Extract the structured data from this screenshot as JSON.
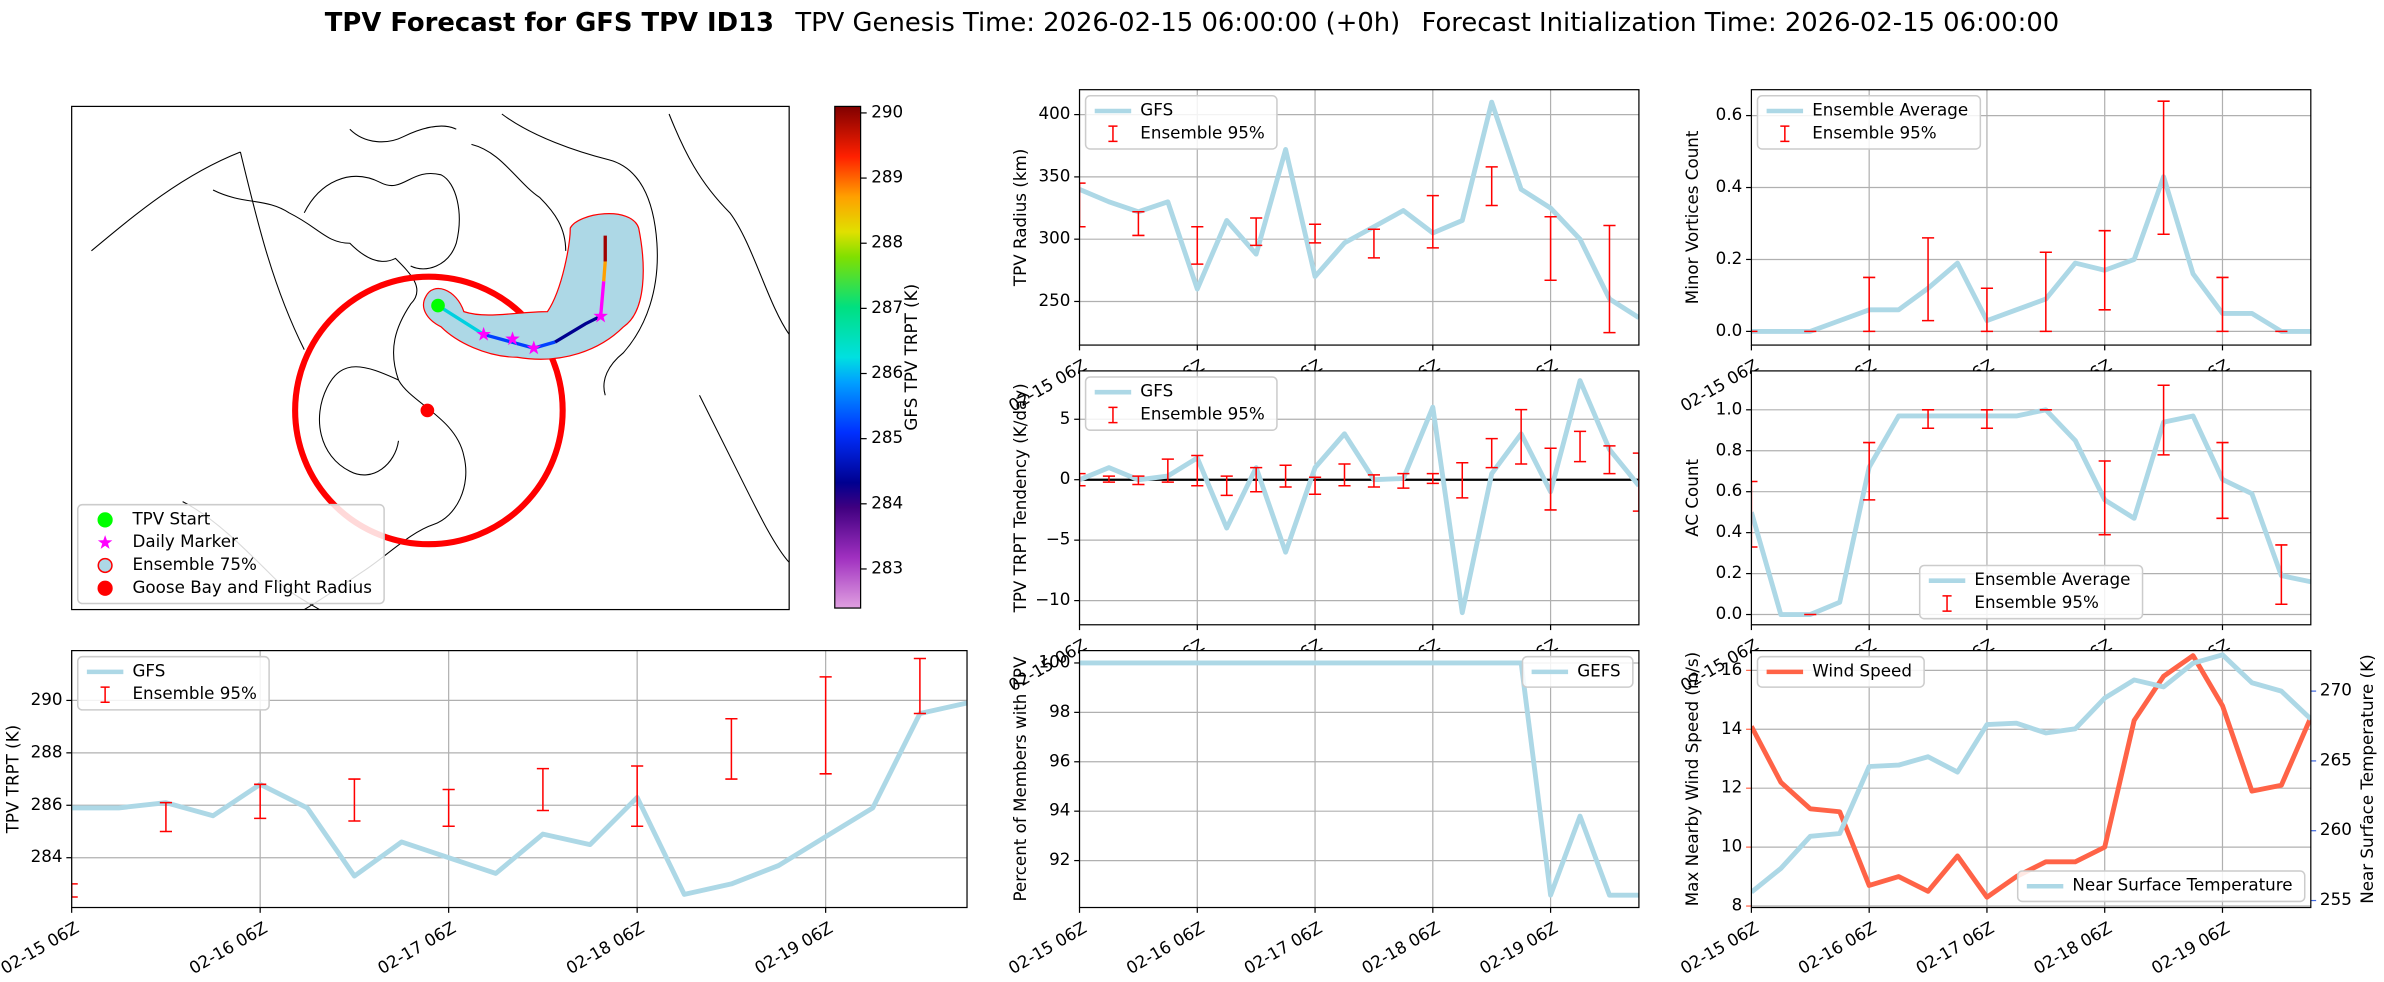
{
  "title": {
    "bold": "TPV Forecast for GFS TPV ID13",
    "genesis": "TPV Genesis Time: 2026-02-15 06:00:00 (+0h)",
    "init": "Forecast Initialization Time: 2026-02-15 06:00:00"
  },
  "chart_data": [
    {
      "type": "map",
      "legend": [
        {
          "name": "TPV Start",
          "marker": "circle",
          "color": "#00ff00",
          "edge": "#00ff00"
        },
        {
          "name": "Daily Marker",
          "marker": "star",
          "color": "#ff00ff",
          "edge": "#ff00ff"
        },
        {
          "name": "Ensemble 75%",
          "marker": "circle",
          "color": "#add8e6",
          "edge": "red"
        },
        {
          "name": "Goose Bay and Flight Radius",
          "marker": "circle",
          "color": "red",
          "edge": "red"
        }
      ],
      "legend_loc": "lower left",
      "colorbar": {
        "label": "GFS TPV TRPT (K)",
        "lim": [
          282.4,
          290.1
        ],
        "ticks": [
          283,
          284,
          285,
          286,
          287,
          288,
          289,
          290
        ]
      }
    },
    {
      "type": "line",
      "ylabel": "TPV Radius (km)",
      "x": [
        0,
        6,
        12,
        18,
        24,
        30,
        36,
        42,
        48,
        54,
        60,
        66,
        72,
        78,
        84,
        90,
        96,
        102,
        108,
        114
      ],
      "xlim": [
        0,
        114
      ],
      "xticks": [
        {
          "value": 0,
          "label": "02-15 06Z"
        },
        {
          "value": 24,
          "label": "02-16 06Z"
        },
        {
          "value": 48,
          "label": "02-17 06Z"
        },
        {
          "value": 72,
          "label": "02-18 06Z"
        },
        {
          "value": 96,
          "label": "02-19 06Z"
        }
      ],
      "ylim": [
        215,
        420
      ],
      "yticks": [
        250,
        300,
        350,
        400
      ],
      "grid": true,
      "legend_loc": "upper left",
      "series": [
        {
          "name": "GFS",
          "color": "#add8e6",
          "values": [
            340,
            330,
            322,
            330,
            260,
            315,
            288,
            372,
            270,
            297,
            310,
            323,
            305,
            315,
            410,
            340,
            325,
            300,
            252,
            237
          ]
        }
      ],
      "errorbars": {
        "name": "Ensemble 95%",
        "color": "red",
        "lower": [
          310,
          null,
          303,
          null,
          280,
          null,
          295,
          null,
          297,
          null,
          285,
          null,
          293,
          null,
          327,
          null,
          267,
          null,
          225,
          null
        ],
        "upper": [
          345,
          null,
          322,
          null,
          310,
          null,
          317,
          null,
          312,
          null,
          308,
          null,
          335,
          null,
          358,
          null,
          318,
          null,
          311,
          null
        ]
      }
    },
    {
      "type": "line",
      "ylabel": "Minor Vortices Count",
      "x": [
        0,
        6,
        12,
        18,
        24,
        30,
        36,
        42,
        48,
        54,
        60,
        66,
        72,
        78,
        84,
        90,
        96,
        102,
        108,
        114
      ],
      "xlim": [
        0,
        114
      ],
      "xticks": [
        {
          "value": 0,
          "label": "02-15 06Z"
        },
        {
          "value": 24,
          "label": "02-16 06Z"
        },
        {
          "value": 48,
          "label": "02-17 06Z"
        },
        {
          "value": 72,
          "label": "02-18 06Z"
        },
        {
          "value": 96,
          "label": "02-19 06Z"
        }
      ],
      "ylim": [
        -0.038,
        0.672
      ],
      "yticks": [
        {
          "value": 0,
          "label": "0.0"
        },
        {
          "value": 0.2,
          "label": "0.2"
        },
        {
          "value": 0.4,
          "label": "0.4"
        },
        {
          "value": 0.6,
          "label": "0.6"
        }
      ],
      "grid": true,
      "legend_loc": "upper left",
      "series": [
        {
          "name": "Ensemble Average",
          "color": "#add8e6",
          "values": [
            0,
            0,
            0,
            0.03,
            0.06,
            0.06,
            0.12,
            0.19,
            0.03,
            0.06,
            0.09,
            0.19,
            0.17,
            0.2,
            0.43,
            0.16,
            0.05,
            0.05,
            0,
            0
          ]
        }
      ],
      "errorbars": {
        "name": "Ensemble 95%",
        "color": "red",
        "lower": [
          0,
          null,
          0,
          null,
          0,
          null,
          0.03,
          null,
          0,
          null,
          0,
          null,
          0.06,
          null,
          0.27,
          null,
          0,
          null,
          0,
          null
        ],
        "upper": [
          0,
          null,
          0,
          null,
          0.15,
          null,
          0.26,
          null,
          0.12,
          null,
          0.22,
          null,
          0.28,
          null,
          0.64,
          null,
          0.15,
          null,
          0,
          null
        ]
      }
    },
    {
      "type": "line",
      "ylabel": "TPV TRPT Tendency (K/day)",
      "x": [
        0,
        6,
        12,
        18,
        24,
        30,
        36,
        42,
        48,
        54,
        60,
        66,
        72,
        78,
        84,
        90,
        96,
        102,
        108,
        114
      ],
      "xlim": [
        0,
        114
      ],
      "xticks": [
        {
          "value": 0,
          "label": "02-15 06Z"
        },
        {
          "value": 24,
          "label": "02-16 06Z"
        },
        {
          "value": 48,
          "label": "02-17 06Z"
        },
        {
          "value": 72,
          "label": "02-18 06Z"
        },
        {
          "value": 96,
          "label": "02-19 06Z"
        }
      ],
      "ylim": [
        -12,
        9
      ],
      "yticks": [
        {
          "value": -10,
          "label": "−10"
        },
        {
          "value": -5,
          "label": "−5"
        },
        0,
        5
      ],
      "grid": true,
      "legend_loc": "upper left",
      "hline": 0,
      "series": [
        {
          "name": "GFS",
          "color": "#add8e6",
          "values": [
            0,
            1,
            0,
            0.3,
            1.8,
            -4,
            1,
            -6,
            1,
            3.8,
            0,
            0.1,
            6,
            -11,
            0.5,
            3.8,
            -1,
            8.2,
            2.5,
            -0.5
          ]
        }
      ],
      "errorbars": {
        "name": "Ensemble 95%",
        "color": "red",
        "lower": [
          -0.5,
          -0.2,
          -0.4,
          -0.2,
          -0.5,
          -1.3,
          -1,
          -0.6,
          -1.2,
          -0.5,
          -0.6,
          -0.7,
          -0.3,
          -1.5,
          1,
          1.3,
          -2.5,
          1.5,
          0.5,
          -2.6
        ],
        "upper": [
          0.5,
          0.3,
          0.3,
          1.7,
          2,
          0.3,
          1,
          1.2,
          0.2,
          1.3,
          0.4,
          0.5,
          0.5,
          1.4,
          3.4,
          5.8,
          2.6,
          4,
          2.8,
          2.2
        ]
      }
    },
    {
      "type": "line",
      "ylabel": "AC Count",
      "x": [
        0,
        6,
        12,
        18,
        24,
        30,
        36,
        42,
        48,
        54,
        60,
        66,
        72,
        78,
        84,
        90,
        96,
        102,
        108,
        114
      ],
      "xlim": [
        0,
        114
      ],
      "xticks": [
        {
          "value": 0,
          "label": "02-15 06Z"
        },
        {
          "value": 24,
          "label": "02-16 06Z"
        },
        {
          "value": 48,
          "label": "02-17 06Z"
        },
        {
          "value": 72,
          "label": "02-18 06Z"
        },
        {
          "value": 96,
          "label": "02-19 06Z"
        }
      ],
      "ylim": [
        -0.05,
        1.19
      ],
      "yticks": [
        {
          "value": 0,
          "label": "0.0"
        },
        {
          "value": 0.2,
          "label": "0.2"
        },
        {
          "value": 0.4,
          "label": "0.4"
        },
        {
          "value": 0.6,
          "label": "0.6"
        },
        {
          "value": 0.8,
          "label": "0.8"
        },
        {
          "value": 1,
          "label": "1.0"
        }
      ],
      "grid": true,
      "legend_loc": "lower center",
      "series": [
        {
          "name": "Ensemble Average",
          "color": "#add8e6",
          "values": [
            0.5,
            0,
            0,
            0.06,
            0.72,
            0.97,
            0.97,
            0.97,
            0.97,
            0.97,
            1.0,
            0.85,
            0.56,
            0.47,
            0.94,
            0.97,
            0.66,
            0.59,
            0.19,
            0.16
          ]
        }
      ],
      "errorbars": {
        "name": "Ensemble 95%",
        "color": "red",
        "lower": [
          0.33,
          null,
          0,
          null,
          0.56,
          null,
          0.91,
          null,
          0.91,
          null,
          1.0,
          null,
          0.39,
          null,
          0.78,
          null,
          0.47,
          null,
          0.05,
          null
        ],
        "upper": [
          0.65,
          null,
          0,
          null,
          0.84,
          null,
          1.0,
          null,
          1.0,
          null,
          1.0,
          null,
          0.75,
          null,
          1.12,
          null,
          0.84,
          null,
          0.34,
          null
        ]
      }
    },
    {
      "type": "line",
      "ylabel": "TPV TRPT (K)",
      "x": [
        0,
        6,
        12,
        18,
        24,
        30,
        36,
        42,
        48,
        54,
        60,
        66,
        72,
        78,
        84,
        90,
        96,
        102,
        108,
        114
      ],
      "xlim": [
        0,
        114
      ],
      "xticks": [
        {
          "value": 0,
          "label": "02-15 06Z"
        },
        {
          "value": 24,
          "label": "02-16 06Z"
        },
        {
          "value": 48,
          "label": "02-17 06Z"
        },
        {
          "value": 72,
          "label": "02-18 06Z"
        },
        {
          "value": 96,
          "label": "02-19 06Z"
        }
      ],
      "ylim": [
        282.1,
        291.9
      ],
      "yticks": [
        284,
        286,
        288,
        290
      ],
      "grid": true,
      "legend_loc": "upper left",
      "series": [
        {
          "name": "GFS",
          "color": "#add8e6",
          "values": [
            285.9,
            285.9,
            286.1,
            285.6,
            286.8,
            285.9,
            283.3,
            284.6,
            284.0,
            283.4,
            284.9,
            284.5,
            286.3,
            282.6,
            283.0,
            283.7,
            284.8,
            285.9,
            289.5,
            289.9
          ]
        }
      ],
      "errorbars": {
        "name": "Ensemble 95%",
        "color": "red",
        "lower": [
          282.5,
          null,
          285,
          null,
          285.5,
          null,
          285.4,
          null,
          285.2,
          null,
          285.8,
          null,
          285.2,
          null,
          287,
          null,
          287.2,
          null,
          289.5,
          null
        ],
        "upper": [
          283.0,
          null,
          286.1,
          null,
          286.8,
          null,
          287,
          null,
          286.6,
          null,
          287.4,
          null,
          287.5,
          null,
          289.3,
          null,
          290.9,
          null,
          291.6,
          null
        ]
      }
    },
    {
      "type": "line",
      "ylabel": "Percent of Members with TPV",
      "x": [
        0,
        6,
        12,
        18,
        24,
        30,
        36,
        42,
        48,
        54,
        60,
        66,
        72,
        78,
        84,
        90,
        96,
        102,
        108,
        114
      ],
      "xlim": [
        0,
        114
      ],
      "xticks": [
        {
          "value": 0,
          "label": "02-15 06Z"
        },
        {
          "value": 24,
          "label": "02-16 06Z"
        },
        {
          "value": 48,
          "label": "02-17 06Z"
        },
        {
          "value": 72,
          "label": "02-18 06Z"
        },
        {
          "value": 96,
          "label": "02-19 06Z"
        }
      ],
      "ylim": [
        90.1,
        100.5
      ],
      "yticks": [
        92,
        94,
        96,
        98,
        100
      ],
      "grid": true,
      "legend_loc": "upper right",
      "series": [
        {
          "name": "GEFS",
          "color": "#add8e6",
          "values": [
            100,
            100,
            100,
            100,
            100,
            100,
            100,
            100,
            100,
            100,
            100,
            100,
            100,
            100,
            100,
            100,
            90.6,
            93.8,
            90.6,
            90.6
          ]
        }
      ]
    },
    {
      "type": "line",
      "ylabel": "Max Nearby Wind Speed (m/s)",
      "y2label": "Near Surface Temperature (K)",
      "ylabel_color": "tomato",
      "y2label_color": "royalblue",
      "x": [
        0,
        6,
        12,
        18,
        24,
        30,
        36,
        42,
        48,
        54,
        60,
        66,
        72,
        78,
        84,
        90,
        96,
        102,
        108,
        114
      ],
      "xlim": [
        0,
        114
      ],
      "xticks": [
        {
          "value": 0,
          "label": "02-15 06Z"
        },
        {
          "value": 24,
          "label": "02-16 06Z"
        },
        {
          "value": 48,
          "label": "02-17 06Z"
        },
        {
          "value": 72,
          "label": "02-18 06Z"
        },
        {
          "value": 96,
          "label": "02-19 06Z"
        }
      ],
      "ylim": [
        7.95,
        16.67
      ],
      "yticks": [
        8,
        10,
        12,
        14,
        16
      ],
      "y2lim": [
        254.5,
        272.9
      ],
      "y2ticks": [
        255,
        260,
        265,
        270
      ],
      "grid": true,
      "series": [
        {
          "name": "Wind Speed",
          "color": "tomato",
          "legend_loc": "upper left",
          "values": [
            14.1,
            12.2,
            11.3,
            11.2,
            8.7,
            9.0,
            8.5,
            9.7,
            8.3,
            9.0,
            9.5,
            9.5,
            10.0,
            14.3,
            15.8,
            16.5,
            14.8,
            11.9,
            12.1,
            14.4
          ]
        },
        {
          "name": "Near Surface Temperature",
          "color": "#add8e6",
          "axis": "y2",
          "legend_loc": "lower right",
          "values": [
            255.6,
            257.3,
            259.6,
            259.8,
            264.6,
            264.7,
            265.3,
            264.2,
            267.6,
            267.7,
            267.0,
            267.3,
            269.5,
            270.8,
            270.3,
            272.0,
            272.6,
            270.6,
            270.0,
            268.0
          ]
        }
      ]
    }
  ]
}
